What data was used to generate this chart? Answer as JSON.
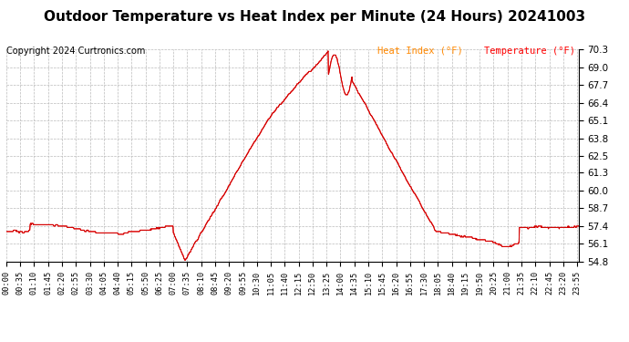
{
  "title": "Outdoor Temperature vs Heat Index per Minute (24 Hours) 20241003",
  "copyright": "Copyright 2024 Curtronics.com",
  "legend_heat": "Heat Index (°F)",
  "legend_temp": "Temperature (°F)",
  "y_min": 54.8,
  "y_max": 70.3,
  "y_ticks": [
    54.8,
    56.1,
    57.4,
    58.7,
    60.0,
    61.3,
    62.5,
    63.8,
    65.1,
    66.4,
    67.7,
    69.0,
    70.3
  ],
  "background_color": "#ffffff",
  "grid_color": "#bbbbbb",
  "line_color_heat": "#ff0000",
  "line_color_temp": "#cc0000",
  "title_color": "#000000",
  "copyright_color": "#000000",
  "legend_color_heat": "#ff8800",
  "legend_color_temp": "#ff0000"
}
